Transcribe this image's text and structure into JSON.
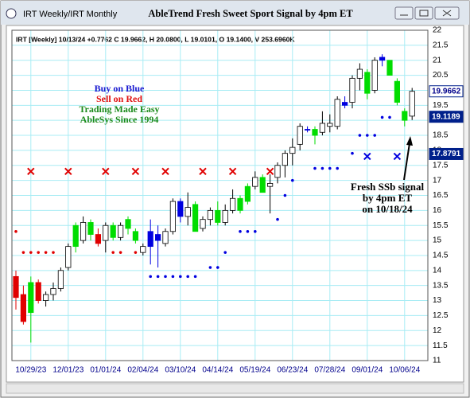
{
  "window": {
    "tab": "IRT Weekly/IRT Monthly"
  },
  "chart_data": {
    "type": "candlestick",
    "title": "AbleTrend Fresh Sweet Sport Signal by 4pm ET",
    "info": "IRT [Weekly] 10/13/24 +0.7762 C 19.9662, H 20.0800, L 19.0101, O 19.1400, V 253.6960K",
    "notes": [
      {
        "text": "Buy on Blue",
        "color": "#1a1ad0"
      },
      {
        "text": "Sell on Red",
        "color": "#e01010"
      },
      {
        "text": "Trading Made Easy",
        "color": "#1a8a1a"
      },
      {
        "text": "AbleSys Since 1994",
        "color": "#1a8a1a"
      }
    ],
    "annotation": [
      "Fresh SSb signal",
      "by 4pm ET",
      "on 10/18/24"
    ],
    "categories": [
      null,
      null,
      "10/29/23",
      null,
      null,
      null,
      null,
      "12/01/23",
      null,
      null,
      null,
      null,
      "01/01/24",
      null,
      null,
      null,
      null,
      "02/04/24",
      null,
      null,
      null,
      null,
      "03/10/24",
      null,
      null,
      null,
      null,
      "04/14/24",
      null,
      null,
      null,
      null,
      "05/19/24",
      null,
      null,
      null,
      null,
      "06/23/24",
      null,
      null,
      null,
      null,
      "07/28/24",
      null,
      null,
      null,
      null,
      "09/01/24",
      null,
      null,
      null,
      null,
      "10/06/24",
      null
    ],
    "open": [
      13.8,
      13.2,
      12.6,
      13.6,
      13.0,
      13.2,
      13.4,
      14.1,
      14.8,
      15.0,
      15.6,
      15.2,
      15.0,
      15.5,
      15.1,
      15.4,
      15.3,
      14.8,
      14.8,
      15.0,
      14.9,
      15.3,
      16.3,
      15.8,
      16.2,
      15.4,
      15.7,
      16.0,
      15.6,
      16.0,
      16.4,
      16.3,
      16.8,
      17.1,
      16.8,
      17.1,
      17.5,
      17.9,
      18.2,
      18.7,
      18.7,
      18.6,
      18.9,
      18.8,
      19.5,
      19.6,
      20.4,
      20.6,
      20.0,
      21.0,
      21.0,
      20.3,
      19.3,
      19.14
    ],
    "high": [
      14.0,
      13.5,
      13.8,
      13.7,
      13.3,
      13.6,
      14.1,
      14.9,
      15.6,
      15.8,
      15.7,
      15.4,
      15.6,
      15.6,
      15.6,
      15.8,
      15.4,
      14.9,
      15.7,
      15.5,
      15.4,
      16.4,
      16.4,
      16.6,
      16.3,
      15.8,
      16.1,
      16.3,
      16.2,
      16.7,
      16.5,
      16.9,
      17.3,
      17.2,
      17.2,
      17.6,
      18.0,
      18.4,
      18.9,
      18.8,
      18.8,
      19.3,
      19.2,
      19.8,
      19.8,
      20.5,
      20.9,
      20.7,
      21.1,
      21.2,
      21.0,
      20.4,
      19.4,
      20.08
    ],
    "low": [
      12.7,
      12.2,
      11.6,
      12.9,
      12.8,
      13.0,
      13.3,
      14.0,
      14.6,
      14.9,
      15.0,
      14.8,
      14.6,
      15.0,
      15.0,
      15.2,
      14.9,
      14.5,
      14.2,
      14.1,
      14.8,
      15.2,
      15.6,
      15.5,
      15.3,
      15.3,
      15.5,
      15.5,
      15.5,
      15.9,
      15.9,
      16.2,
      16.7,
      16.6,
      15.9,
      16.9,
      17.1,
      17.5,
      18.0,
      18.6,
      18.2,
      18.5,
      18.6,
      18.7,
      19.4,
      19.4,
      20.0,
      19.7,
      19.9,
      20.8,
      20.5,
      19.5,
      18.8,
      19.01
    ],
    "close": [
      13.1,
      12.3,
      13.6,
      13.0,
      13.2,
      13.4,
      14.0,
      14.8,
      15.5,
      15.6,
      15.2,
      14.9,
      15.5,
      15.1,
      15.5,
      15.7,
      15.0,
      14.6,
      15.3,
      15.2,
      15.3,
      16.3,
      15.8,
      16.1,
      15.3,
      15.7,
      16.0,
      15.6,
      16.0,
      16.4,
      16.0,
      16.8,
      17.1,
      16.6,
      16.9,
      17.5,
      17.9,
      18.1,
      18.8,
      18.7,
      18.5,
      18.9,
      18.8,
      19.7,
      19.6,
      20.4,
      20.7,
      19.9,
      21.0,
      21.1,
      20.5,
      19.6,
      19.0,
      19.9662
    ],
    "colors": [
      "#e00000",
      "#e00000",
      "#00dd00",
      "#e00000",
      "#ffffff",
      "#ffffff",
      "#ffffff",
      "#ffffff",
      "#00dd00",
      "#ffffff",
      "#00dd00",
      "#e00000",
      "#ffffff",
      "#00dd00",
      "#ffffff",
      "#00dd00",
      "#00dd00",
      "#ffffff",
      "#0000e0",
      "#0000e0",
      "#ffffff",
      "#ffffff",
      "#0000e0",
      "#ffffff",
      "#00dd00",
      "#ffffff",
      "#ffffff",
      "#00dd00",
      "#ffffff",
      "#ffffff",
      "#00dd00",
      "#00dd00",
      "#ffffff",
      "#00dd00",
      "#ffffff",
      "#ffffff",
      "#ffffff",
      "#ffffff",
      "#ffffff",
      "#0000e0",
      "#00dd00",
      "#ffffff",
      "#ffffff",
      "#ffffff",
      "#0000e0",
      "#ffffff",
      "#ffffff",
      "#00dd00",
      "#ffffff",
      "#0000e0",
      "#00dd00",
      "#00dd00",
      "#00dd00",
      "#ffffff"
    ],
    "stops": [
      {
        "color": "#e00000",
        "values": [
          15.3,
          14.6,
          14.6,
          14.6,
          14.6,
          14.6,
          null,
          null,
          null,
          null,
          null,
          null,
          null,
          14.6,
          14.6,
          null,
          14.6,
          null,
          null,
          null,
          null,
          null,
          null,
          null,
          null,
          null,
          null,
          null,
          null,
          null,
          null,
          null,
          null,
          null,
          null,
          null,
          null,
          null,
          null,
          null,
          null,
          null,
          null,
          null,
          null,
          null,
          null,
          null,
          null,
          null,
          null,
          null,
          null,
          null
        ]
      },
      {
        "color": "#0000e0",
        "values": [
          null,
          null,
          null,
          null,
          null,
          null,
          null,
          null,
          null,
          null,
          null,
          null,
          null,
          null,
          null,
          null,
          null,
          null,
          13.8,
          13.8,
          13.8,
          13.8,
          13.8,
          13.8,
          13.8,
          null,
          14.1,
          14.1,
          14.6,
          null,
          15.3,
          15.3,
          15.3,
          null,
          null,
          15.7,
          16.5,
          17.0,
          null,
          null,
          17.4,
          17.4,
          17.4,
          17.4,
          null,
          17.9,
          18.5,
          18.5,
          18.5,
          19.1,
          19.1,
          null,
          null,
          null
        ]
      }
    ],
    "signals": [
      {
        "color": "#e00000",
        "values": [
          null,
          null,
          17.3,
          null,
          null,
          null,
          null,
          17.3,
          null,
          null,
          null,
          null,
          17.3,
          null,
          null,
          null,
          17.3,
          null,
          null,
          null,
          17.3,
          null,
          null,
          null,
          null,
          17.3,
          null,
          null,
          null,
          17.3,
          null,
          null,
          null,
          null,
          17.3,
          null,
          null,
          null,
          null,
          null,
          null,
          null,
          null,
          null,
          null,
          null,
          null,
          null,
          null,
          null,
          null,
          null,
          null,
          null
        ]
      },
      {
        "color": "#0000e0",
        "values": [
          null,
          null,
          null,
          null,
          null,
          null,
          null,
          null,
          null,
          null,
          null,
          null,
          null,
          null,
          null,
          null,
          null,
          null,
          null,
          null,
          null,
          null,
          null,
          null,
          null,
          null,
          null,
          null,
          null,
          null,
          null,
          null,
          null,
          null,
          null,
          null,
          null,
          null,
          null,
          null,
          null,
          null,
          null,
          null,
          null,
          null,
          null,
          17.8,
          null,
          null,
          null,
          17.8,
          null,
          null
        ]
      }
    ],
    "price_labels": [
      {
        "value": 19.9662,
        "fill": "#ffffff",
        "text_color": "#00008b"
      },
      {
        "value": 19.1189,
        "fill": "#00208b",
        "text_color": "#ffffff"
      },
      {
        "value": 17.8791,
        "fill": "#00208b",
        "text_color": "#ffffff"
      }
    ],
    "ylim": [
      11,
      22
    ],
    "yticks": [
      11,
      11.5,
      12,
      12.5,
      13,
      13.5,
      14,
      14.5,
      15,
      15.5,
      16,
      16.5,
      17,
      17.5,
      18,
      18.5,
      19,
      19.5,
      20,
      20.5,
      21,
      21.5,
      22
    ],
    "grid": true,
    "grid_color": "#a8ecf4"
  }
}
